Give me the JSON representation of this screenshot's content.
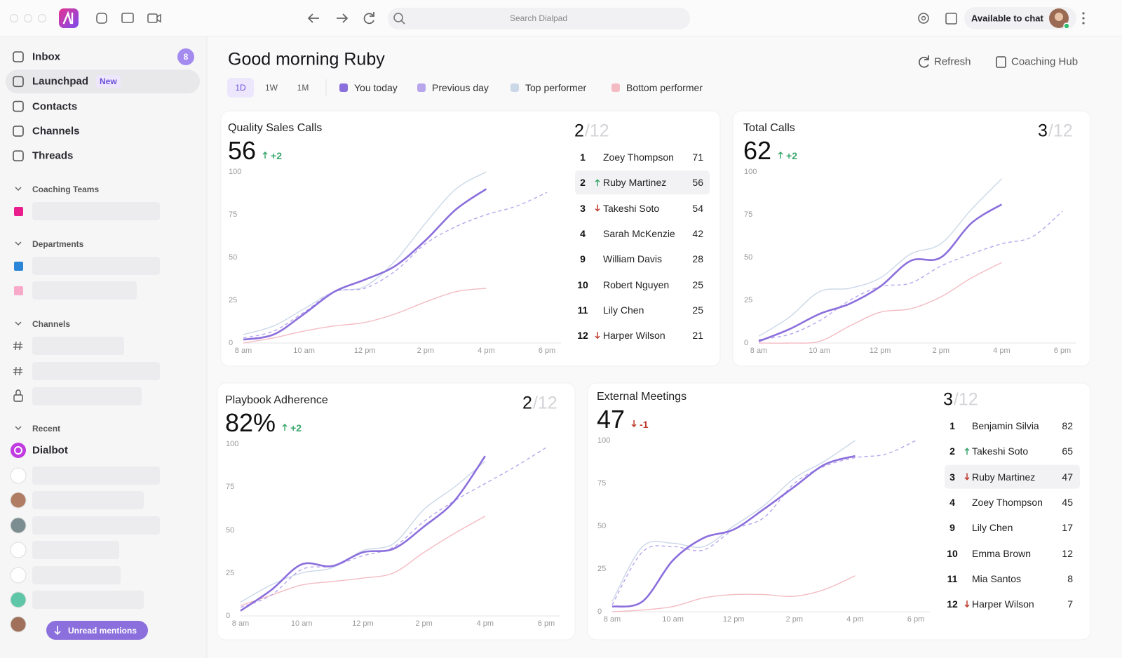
{
  "topbar": {
    "search": "Search Dialpad",
    "status": "Available to chat"
  },
  "sidebar": {
    "nav": [
      {
        "label": "Inbox",
        "badge": "8"
      },
      {
        "label": "Launchpad",
        "tag": "New"
      },
      {
        "label": "Contacts"
      },
      {
        "label": "Channels"
      },
      {
        "label": "Threads"
      }
    ],
    "sections": [
      "Coaching Teams",
      "Departments",
      "Channels",
      "Recent"
    ],
    "bot": "Dialbot",
    "button": "Unread mentions"
  },
  "header": {
    "greeting": "Good morning Ruby",
    "ranges": [
      "1D",
      "1W",
      "1M"
    ],
    "active_range": 0,
    "legend": [
      {
        "name": "You today",
        "color": "#8b6fdc",
        "dashed": false
      },
      {
        "name": "Previous day",
        "color": "#b7a6ec",
        "dashed": true
      },
      {
        "name": "Top performer",
        "color": "#cbd8e8",
        "dashed": false
      },
      {
        "name": "Bottom performer",
        "color": "#f3bcc3",
        "dashed": false
      }
    ],
    "actions": [
      "Refresh",
      "Coaching Hub"
    ]
  },
  "cards": [
    {
      "title": "Quality Sales Calls",
      "value": "56",
      "delta": "+2",
      "rank": "2",
      "total": "/12",
      "chart": {
        "type": "line",
        "x": [
          8,
          9,
          10,
          11,
          12,
          13,
          14,
          15,
          16,
          17,
          18
        ],
        "xlim": [
          8,
          18
        ],
        "ylim": [
          0,
          100
        ],
        "yticks": [
          0,
          25,
          50,
          75,
          100
        ],
        "xticks": [
          {
            "value": 8,
            "label": "8 am"
          },
          {
            "value": 10,
            "label": "10 am"
          },
          {
            "value": 12,
            "label": "12 pm"
          },
          {
            "value": 14,
            "label": "2 pm"
          },
          {
            "value": 16,
            "label": "4 pm"
          },
          {
            "value": 18,
            "label": "6 pm"
          }
        ],
        "series": [
          {
            "values": [
              2,
              5,
              17,
              30,
              37,
              45,
              60,
              78,
              90,
              null,
              null
            ]
          },
          {
            "values": [
              3,
              7,
              18,
              30,
              32,
              42,
              58,
              68,
              75,
              80,
              88
            ]
          },
          {
            "values": [
              5,
              10,
              20,
              30,
              33,
              48,
              70,
              90,
              100,
              null,
              null
            ]
          },
          {
            "values": [
              0,
              3,
              7,
              10,
              12,
              17,
              24,
              30,
              32,
              null,
              null
            ]
          }
        ]
      },
      "leaderboard": [
        {
          "rank": 1,
          "name": "Zoey Thompson",
          "score": 71
        },
        {
          "rank": 2,
          "name": "Ruby Martinez",
          "score": 56,
          "trend": "up",
          "highlight": true
        },
        {
          "rank": 3,
          "name": "Takeshi Soto",
          "score": 54,
          "trend": "down"
        },
        {
          "rank": 4,
          "name": "Sarah McKenzie",
          "score": 42
        },
        {
          "rank": 9,
          "name": "William Davis",
          "score": 28
        },
        {
          "rank": 10,
          "name": "Robert Nguyen",
          "score": 25
        },
        {
          "rank": 11,
          "name": "Lily Chen",
          "score": 25
        },
        {
          "rank": 12,
          "name": "Harper Wilson",
          "score": 21,
          "trend": "down"
        }
      ]
    },
    {
      "title": "Total Calls",
      "value": "62",
      "delta": "+2",
      "rank": "3",
      "total": "/12",
      "chart": {
        "type": "line",
        "x": [
          8,
          9,
          10,
          11,
          12,
          13,
          14,
          15,
          16,
          17,
          18
        ],
        "xlim": [
          8,
          18
        ],
        "ylim": [
          0,
          100
        ],
        "yticks": [
          0,
          25,
          50,
          75,
          100
        ],
        "xticks": [
          {
            "value": 8,
            "label": "8 am"
          },
          {
            "value": 10,
            "label": "10 am"
          },
          {
            "value": 12,
            "label": "12 pm"
          },
          {
            "value": 14,
            "label": "2 pm"
          },
          {
            "value": 16,
            "label": "4 pm"
          },
          {
            "value": 18,
            "label": "6 pm"
          }
        ],
        "series": [
          {
            "values": [
              1,
              8,
              17,
              23,
              33,
              48,
              50,
              70,
              81,
              null,
              null
            ]
          },
          {
            "values": [
              2,
              5,
              13,
              25,
              33,
              35,
              45,
              52,
              58,
              62,
              77
            ]
          },
          {
            "values": [
              4,
              15,
              30,
              32,
              38,
              52,
              58,
              78,
              96,
              null,
              null
            ]
          },
          {
            "values": [
              0,
              0,
              1,
              10,
              18,
              20,
              27,
              38,
              47,
              null,
              null
            ]
          }
        ]
      }
    },
    {
      "title": "Playbook Adherence",
      "value": "82%",
      "delta": "+2",
      "rank": "2",
      "total": "/12",
      "chart": {
        "type": "line",
        "x": [
          8,
          9,
          10,
          11,
          12,
          13,
          14,
          15,
          16,
          17,
          18
        ],
        "xlim": [
          8,
          18
        ],
        "ylim": [
          0,
          100
        ],
        "yticks": [
          0,
          25,
          50,
          75,
          100
        ],
        "xticks": [
          {
            "value": 8,
            "label": "8 am"
          },
          {
            "value": 10,
            "label": "10 am"
          },
          {
            "value": 12,
            "label": "12 pm"
          },
          {
            "value": 14,
            "label": "2 pm"
          },
          {
            "value": 16,
            "label": "4 pm"
          },
          {
            "value": 18,
            "label": "6 pm"
          }
        ],
        "series": [
          {
            "values": [
              3,
              15,
              30,
              29,
              37,
              39,
              52,
              67,
              93,
              null,
              null
            ]
          },
          {
            "values": [
              5,
              12,
              27,
              29,
              35,
              40,
              55,
              67,
              77,
              87,
              98
            ]
          },
          {
            "values": [
              8,
              18,
              25,
              28,
              38,
              42,
              62,
              75,
              90,
              null,
              null
            ]
          },
          {
            "values": [
              6,
              12,
              18,
              20,
              22,
              25,
              37,
              48,
              58,
              null,
              null
            ]
          }
        ]
      }
    },
    {
      "title": "External Meetings",
      "value": "47",
      "delta": "-1",
      "rank": "3",
      "total": "/12",
      "chart": {
        "type": "line",
        "x": [
          8,
          9,
          10,
          11,
          12,
          13,
          14,
          15,
          16,
          17,
          18
        ],
        "xlim": [
          8,
          18
        ],
        "ylim": [
          0,
          100
        ],
        "yticks": [
          0,
          25,
          50,
          75,
          100
        ],
        "xticks": [
          {
            "value": 8,
            "label": "8 am"
          },
          {
            "value": 10,
            "label": "10 am"
          },
          {
            "value": 12,
            "label": "12 pm"
          },
          {
            "value": 14,
            "label": "2 pm"
          },
          {
            "value": 16,
            "label": "4 pm"
          },
          {
            "value": 18,
            "label": "6 pm"
          }
        ],
        "series": [
          {
            "values": [
              3,
              6,
              30,
              43,
              48,
              60,
              73,
              86,
              91,
              null,
              null
            ]
          },
          {
            "values": [
              4,
              35,
              38,
              36,
              48,
              55,
              75,
              85,
              90,
              92,
              100
            ]
          },
          {
            "values": [
              6,
              38,
              40,
              38,
              50,
              62,
              78,
              88,
              100,
              null,
              null
            ]
          },
          {
            "values": [
              0,
              1,
              3,
              8,
              10,
              10,
              9,
              13,
              21,
              null,
              null
            ]
          }
        ]
      },
      "leaderboard": [
        {
          "rank": 1,
          "name": "Benjamin Silvia",
          "score": 82
        },
        {
          "rank": 2,
          "name": "Takeshi Soto",
          "score": 65,
          "trend": "up"
        },
        {
          "rank": 3,
          "name": "Ruby Martinez",
          "score": 47,
          "trend": "down",
          "highlight": true
        },
        {
          "rank": 4,
          "name": "Zoey Thompson",
          "score": 45
        },
        {
          "rank": 9,
          "name": "Lily Chen",
          "score": 17
        },
        {
          "rank": 10,
          "name": "Emma Brown",
          "score": 12
        },
        {
          "rank": 11,
          "name": "Mia Santos",
          "score": 8
        },
        {
          "rank": 12,
          "name": "Harper Wilson",
          "score": 7,
          "trend": "down"
        }
      ]
    }
  ]
}
